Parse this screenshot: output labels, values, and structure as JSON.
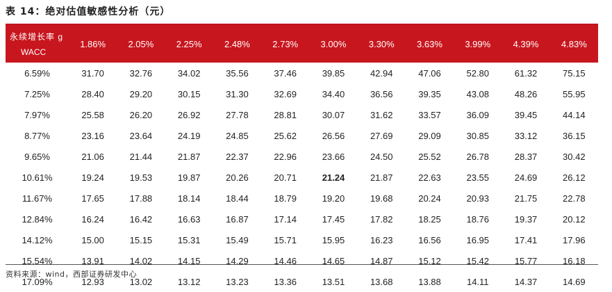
{
  "title": "表 14：绝对估值敏感性分析（元）",
  "header": {
    "row_label": "永续增长率 g",
    "col_label": "WACC",
    "growth_rates": [
      "1.86%",
      "2.05%",
      "2.25%",
      "2.48%",
      "2.73%",
      "3.00%",
      "3.30%",
      "3.63%",
      "3.99%",
      "4.39%",
      "4.83%"
    ]
  },
  "rows": [
    {
      "wacc": "6.59%",
      "values": [
        "31.70",
        "32.76",
        "34.02",
        "35.56",
        "37.46",
        "39.85",
        "42.94",
        "47.06",
        "52.80",
        "61.32",
        "75.15"
      ]
    },
    {
      "wacc": "7.25%",
      "values": [
        "28.40",
        "29.20",
        "30.15",
        "31.30",
        "32.69",
        "34.40",
        "36.56",
        "39.35",
        "43.08",
        "48.26",
        "55.95"
      ]
    },
    {
      "wacc": "7.97%",
      "values": [
        "25.58",
        "26.20",
        "26.92",
        "27.78",
        "28.81",
        "30.07",
        "31.62",
        "33.57",
        "36.09",
        "39.45",
        "44.14"
      ]
    },
    {
      "wacc": "8.77%",
      "values": [
        "23.16",
        "23.64",
        "24.19",
        "24.85",
        "25.62",
        "26.56",
        "27.69",
        "29.09",
        "30.85",
        "33.12",
        "36.15"
      ]
    },
    {
      "wacc": "9.65%",
      "values": [
        "21.06",
        "21.44",
        "21.87",
        "22.37",
        "22.96",
        "23.66",
        "24.50",
        "25.52",
        "26.78",
        "28.37",
        "30.42"
      ]
    },
    {
      "wacc": "10.61%",
      "values": [
        "19.24",
        "19.53",
        "19.87",
        "20.26",
        "20.71",
        "21.24",
        "21.87",
        "22.63",
        "23.55",
        "24.69",
        "26.12"
      ]
    },
    {
      "wacc": "11.67%",
      "values": [
        "17.65",
        "17.88",
        "18.14",
        "18.44",
        "18.79",
        "19.20",
        "19.68",
        "20.24",
        "20.93",
        "21.75",
        "22.78"
      ]
    },
    {
      "wacc": "12.84%",
      "values": [
        "16.24",
        "16.42",
        "16.63",
        "16.87",
        "17.14",
        "17.45",
        "17.82",
        "18.25",
        "18.76",
        "19.37",
        "20.12"
      ]
    },
    {
      "wacc": "14.12%",
      "values": [
        "15.00",
        "15.15",
        "15.31",
        "15.49",
        "15.71",
        "15.95",
        "16.23",
        "16.56",
        "16.95",
        "17.41",
        "17.96"
      ]
    },
    {
      "wacc": "15.54%",
      "values": [
        "13.91",
        "14.02",
        "14.15",
        "14.29",
        "14.46",
        "14.65",
        "14.87",
        "15.12",
        "15.42",
        "15.77",
        "16.18"
      ]
    },
    {
      "wacc": "17.09%",
      "values": [
        "12.93",
        "13.02",
        "13.12",
        "13.23",
        "13.36",
        "13.51",
        "13.68",
        "13.88",
        "14.11",
        "14.37",
        "14.69"
      ]
    }
  ],
  "highlight": {
    "row": 5,
    "col": 5
  },
  "source": "资料来源：wind，西部证券研发中心",
  "colors": {
    "header_bg": "#c8161e",
    "header_text": "#ffffff"
  }
}
